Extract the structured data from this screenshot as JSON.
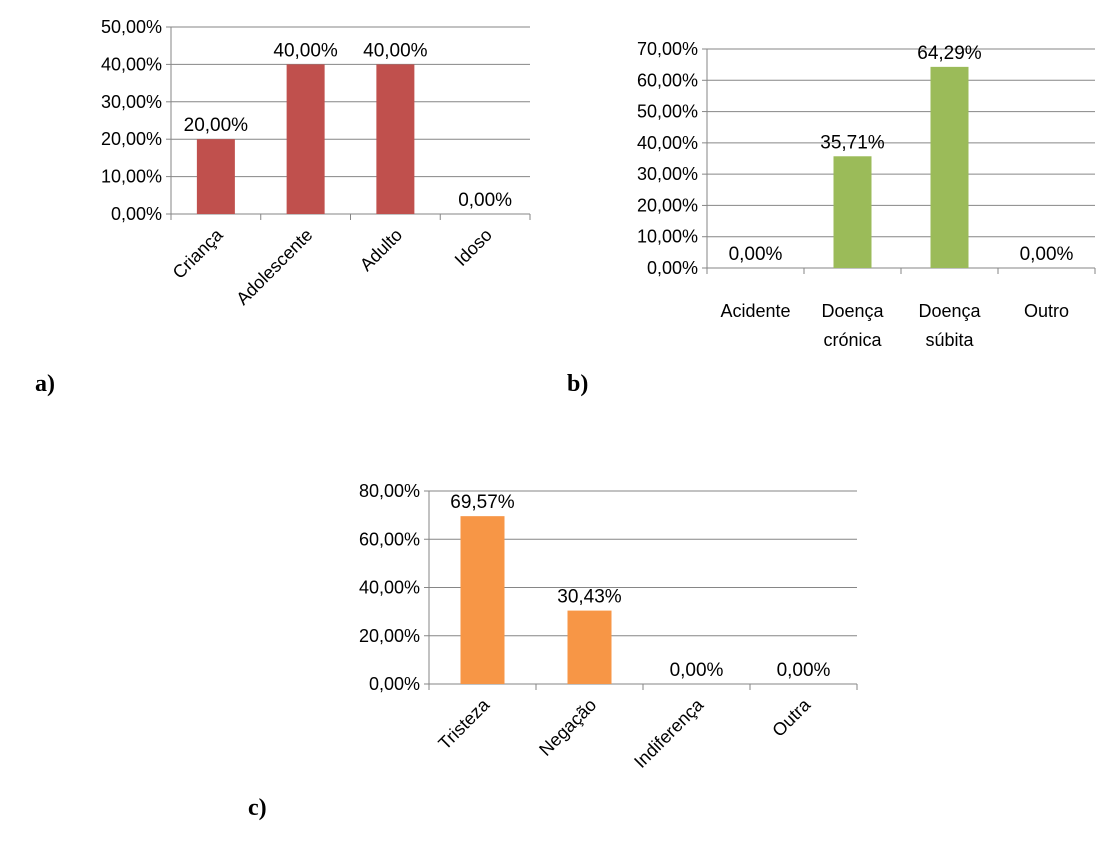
{
  "chart_data": [
    {
      "type": "bar",
      "panel_label": "a)",
      "categories": [
        "Criança",
        "Adolescente",
        "Adulto",
        "Idoso"
      ],
      "values": [
        20.0,
        40.0,
        40.0,
        0.0
      ],
      "value_labels": [
        "20,00%",
        "40,00%",
        "40,00%",
        "0,00%"
      ],
      "ylim": [
        0,
        50
      ],
      "yticks": [
        "0,00%",
        "10,00%",
        "20,00%",
        "30,00%",
        "40,00%",
        "50,00%"
      ],
      "grid": true,
      "bar_color": "#c0504d",
      "x_label_rotation": "45deg"
    },
    {
      "type": "bar",
      "panel_label": "b)",
      "categories": [
        [
          "Acidente"
        ],
        [
          "Doença",
          "crónica"
        ],
        [
          "Doença",
          "súbita"
        ],
        [
          "Outro"
        ]
      ],
      "values": [
        0.0,
        35.71,
        64.29,
        0.0
      ],
      "value_labels": [
        "0,00%",
        "35,71%",
        "64,29%",
        "0,00%"
      ],
      "ylim": [
        0,
        70
      ],
      "yticks": [
        "0,00%",
        "10,00%",
        "20,00%",
        "30,00%",
        "40,00%",
        "50,00%",
        "60,00%",
        "70,00%"
      ],
      "grid": true,
      "bar_color": "#9bbb59",
      "x_label_rotation": "none"
    },
    {
      "type": "bar",
      "panel_label": "c)",
      "categories": [
        "Tristeza",
        "Negação",
        "Indiferença",
        "Outra"
      ],
      "values": [
        69.57,
        30.43,
        0.0,
        0.0
      ],
      "value_labels": [
        "69,57%",
        "30,43%",
        "0,00%",
        "0,00%"
      ],
      "ylim": [
        0,
        80
      ],
      "yticks": [
        "0,00%",
        "20,00%",
        "40,00%",
        "60,00%",
        "80,00%"
      ],
      "grid": true,
      "bar_color": "#f79646",
      "x_label_rotation": "45deg"
    }
  ]
}
